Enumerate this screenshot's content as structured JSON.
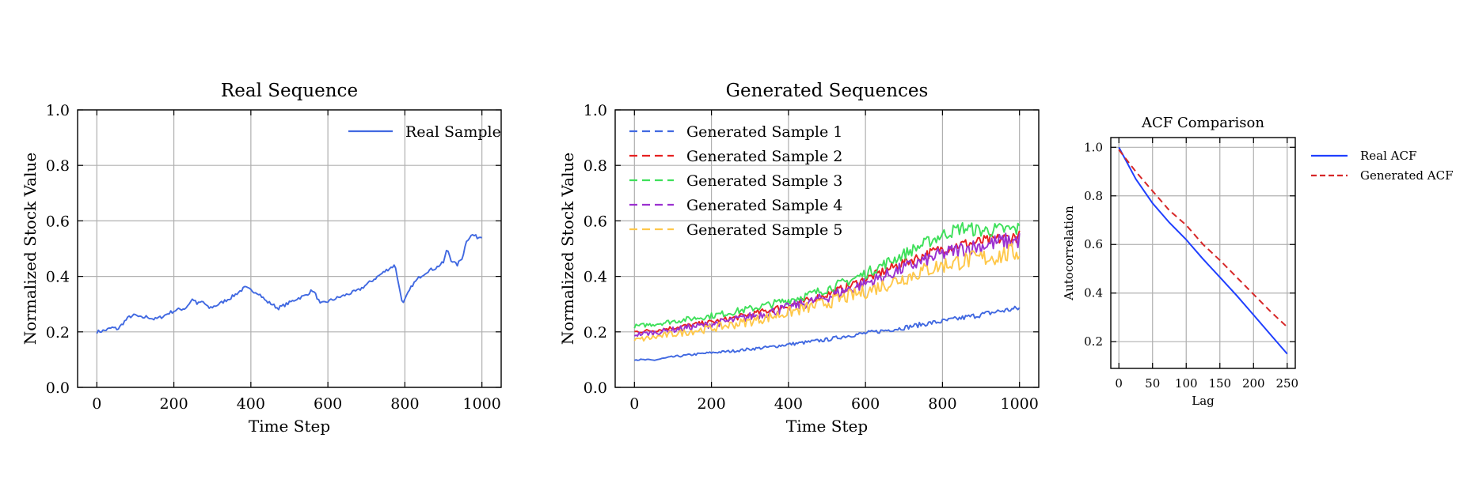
{
  "chart_data": [
    {
      "type": "line",
      "title": "Real Sequence",
      "xlabel": "Time Step",
      "ylabel": "Normalized Stock Value",
      "xlim": [
        -50,
        1050
      ],
      "ylim": [
        0.0,
        1.0
      ],
      "xticks": [
        "0",
        "200",
        "400",
        "600",
        "800",
        "1000"
      ],
      "yticks": [
        "0.0",
        "0.2",
        "0.4",
        "0.6",
        "0.8",
        "1.0"
      ],
      "grid": true,
      "legend": "top-right",
      "series": [
        {
          "name": "Real Sample",
          "color": "#4169e1",
          "style": "solid",
          "points": [
            [
              0,
              0.2
            ],
            [
              20,
              0.205
            ],
            [
              40,
              0.215
            ],
            [
              55,
              0.21
            ],
            [
              70,
              0.235
            ],
            [
              85,
              0.255
            ],
            [
              100,
              0.26
            ],
            [
              115,
              0.25
            ],
            [
              130,
              0.255
            ],
            [
              150,
              0.245
            ],
            [
              170,
              0.255
            ],
            [
              190,
              0.27
            ],
            [
              210,
              0.28
            ],
            [
              230,
              0.285
            ],
            [
              250,
              0.32
            ],
            [
              260,
              0.3
            ],
            [
              275,
              0.31
            ],
            [
              290,
              0.285
            ],
            [
              310,
              0.295
            ],
            [
              330,
              0.31
            ],
            [
              350,
              0.325
            ],
            [
              370,
              0.345
            ],
            [
              385,
              0.36
            ],
            [
              400,
              0.35
            ],
            [
              420,
              0.34
            ],
            [
              440,
              0.31
            ],
            [
              455,
              0.3
            ],
            [
              470,
              0.285
            ],
            [
              485,
              0.295
            ],
            [
              500,
              0.305
            ],
            [
              520,
              0.32
            ],
            [
              540,
              0.33
            ],
            [
              560,
              0.35
            ],
            [
              570,
              0.33
            ],
            [
              580,
              0.3
            ],
            [
              600,
              0.31
            ],
            [
              620,
              0.32
            ],
            [
              640,
              0.33
            ],
            [
              660,
              0.34
            ],
            [
              680,
              0.35
            ],
            [
              700,
              0.37
            ],
            [
              720,
              0.39
            ],
            [
              740,
              0.41
            ],
            [
              760,
              0.43
            ],
            [
              775,
              0.44
            ],
            [
              785,
              0.36
            ],
            [
              795,
              0.3
            ],
            [
              805,
              0.33
            ],
            [
              820,
              0.37
            ],
            [
              840,
              0.4
            ],
            [
              860,
              0.42
            ],
            [
              880,
              0.43
            ],
            [
              900,
              0.45
            ],
            [
              910,
              0.5
            ],
            [
              920,
              0.46
            ],
            [
              935,
              0.44
            ],
            [
              950,
              0.47
            ],
            [
              960,
              0.53
            ],
            [
              975,
              0.55
            ],
            [
              990,
              0.54
            ],
            [
              1000,
              0.545
            ]
          ]
        }
      ]
    },
    {
      "type": "line",
      "title": "Generated Sequences",
      "xlabel": "Time Step",
      "ylabel": "Normalized Stock Value",
      "xlim": [
        -50,
        1050
      ],
      "ylim": [
        0.0,
        1.0
      ],
      "xticks": [
        "0",
        "200",
        "400",
        "600",
        "800",
        "1000"
      ],
      "yticks": [
        "0.0",
        "0.2",
        "0.4",
        "0.6",
        "0.8",
        "1.0"
      ],
      "grid": true,
      "legend": "top-left",
      "series": [
        {
          "name": "Generated Sample 1",
          "color": "#4169e1",
          "style": "dashed",
          "points": [
            [
              0,
              0.1
            ],
            [
              50,
              0.098
            ],
            [
              100,
              0.11
            ],
            [
              150,
              0.118
            ],
            [
              200,
              0.125
            ],
            [
              250,
              0.13
            ],
            [
              300,
              0.138
            ],
            [
              350,
              0.145
            ],
            [
              400,
              0.155
            ],
            [
              450,
              0.163
            ],
            [
              500,
              0.172
            ],
            [
              550,
              0.185
            ],
            [
              600,
              0.195
            ],
            [
              650,
              0.205
            ],
            [
              700,
              0.215
            ],
            [
              750,
              0.228
            ],
            [
              800,
              0.238
            ],
            [
              850,
              0.25
            ],
            [
              900,
              0.262
            ],
            [
              950,
              0.275
            ],
            [
              1000,
              0.285
            ]
          ]
        },
        {
          "name": "Generated Sample 2",
          "color": "#e62020",
          "style": "dashed",
          "points": [
            [
              0,
              0.2
            ],
            [
              50,
              0.205
            ],
            [
              100,
              0.215
            ],
            [
              150,
              0.225
            ],
            [
              200,
              0.235
            ],
            [
              250,
              0.248
            ],
            [
              300,
              0.262
            ],
            [
              350,
              0.278
            ],
            [
              400,
              0.295
            ],
            [
              450,
              0.312
            ],
            [
              500,
              0.335
            ],
            [
              550,
              0.36
            ],
            [
              600,
              0.39
            ],
            [
              650,
              0.42
            ],
            [
              700,
              0.45
            ],
            [
              750,
              0.475
            ],
            [
              800,
              0.5
            ],
            [
              850,
              0.515
            ],
            [
              900,
              0.525
            ],
            [
              950,
              0.535
            ],
            [
              1000,
              0.545
            ]
          ]
        },
        {
          "name": "Generated Sample 3",
          "color": "#3ee05a",
          "style": "dashed",
          "points": [
            [
              0,
              0.22
            ],
            [
              50,
              0.228
            ],
            [
              100,
              0.238
            ],
            [
              150,
              0.248
            ],
            [
              200,
              0.258
            ],
            [
              250,
              0.27
            ],
            [
              300,
              0.283
            ],
            [
              350,
              0.298
            ],
            [
              400,
              0.315
            ],
            [
              450,
              0.332
            ],
            [
              500,
              0.355
            ],
            [
              550,
              0.38
            ],
            [
              600,
              0.41
            ],
            [
              650,
              0.445
            ],
            [
              700,
              0.48
            ],
            [
              750,
              0.515
            ],
            [
              800,
              0.55
            ],
            [
              850,
              0.575
            ],
            [
              900,
              0.565
            ],
            [
              950,
              0.568
            ],
            [
              1000,
              0.57
            ]
          ]
        },
        {
          "name": "Generated Sample 4",
          "color": "#9b30d0",
          "style": "dashed",
          "points": [
            [
              0,
              0.19
            ],
            [
              50,
              0.197
            ],
            [
              100,
              0.207
            ],
            [
              150,
              0.218
            ],
            [
              200,
              0.228
            ],
            [
              250,
              0.24
            ],
            [
              300,
              0.255
            ],
            [
              350,
              0.27
            ],
            [
              400,
              0.288
            ],
            [
              450,
              0.305
            ],
            [
              500,
              0.325
            ],
            [
              550,
              0.35
            ],
            [
              600,
              0.375
            ],
            [
              650,
              0.4
            ],
            [
              700,
              0.43
            ],
            [
              750,
              0.455
            ],
            [
              800,
              0.48
            ],
            [
              850,
              0.5
            ],
            [
              900,
              0.51
            ],
            [
              950,
              0.525
            ],
            [
              1000,
              0.53
            ]
          ]
        },
        {
          "name": "Generated Sample 5",
          "color": "#ffc84a",
          "style": "dashed",
          "points": [
            [
              0,
              0.17
            ],
            [
              50,
              0.18
            ],
            [
              100,
              0.192
            ],
            [
              150,
              0.203
            ],
            [
              200,
              0.213
            ],
            [
              250,
              0.225
            ],
            [
              300,
              0.238
            ],
            [
              350,
              0.253
            ],
            [
              400,
              0.27
            ],
            [
              450,
              0.287
            ],
            [
              500,
              0.305
            ],
            [
              550,
              0.325
            ],
            [
              600,
              0.345
            ],
            [
              650,
              0.37
            ],
            [
              700,
              0.395
            ],
            [
              750,
              0.42
            ],
            [
              800,
              0.44
            ],
            [
              850,
              0.455
            ],
            [
              900,
              0.465
            ],
            [
              950,
              0.475
            ],
            [
              1000,
              0.49
            ]
          ]
        }
      ]
    },
    {
      "type": "line",
      "title": "ACF Comparison",
      "xlabel": "Lag",
      "ylabel": "Autocorrelation",
      "xlim": [
        -12,
        262
      ],
      "ylim": [
        0.09,
        1.04
      ],
      "xticks": [
        "0",
        "50",
        "100",
        "150",
        "200",
        "250"
      ],
      "yticks": [
        "0.2",
        "0.4",
        "0.6",
        "0.8",
        "1.0"
      ],
      "grid": true,
      "legend": "top-right",
      "series": [
        {
          "name": "Real ACF",
          "color": "#1f3fff",
          "style": "solid",
          "points": [
            [
              0,
              1.0
            ],
            [
              25,
              0.87
            ],
            [
              50,
              0.77
            ],
            [
              75,
              0.69
            ],
            [
              100,
              0.62
            ],
            [
              125,
              0.54
            ],
            [
              150,
              0.465
            ],
            [
              175,
              0.39
            ],
            [
              200,
              0.31
            ],
            [
              225,
              0.23
            ],
            [
              250,
              0.15
            ]
          ]
        },
        {
          "name": "Generated ACF",
          "color": "#d62728",
          "style": "dashed",
          "points": [
            [
              0,
              0.99
            ],
            [
              25,
              0.9
            ],
            [
              50,
              0.82
            ],
            [
              75,
              0.74
            ],
            [
              100,
              0.68
            ],
            [
              125,
              0.6
            ],
            [
              150,
              0.535
            ],
            [
              175,
              0.465
            ],
            [
              200,
              0.395
            ],
            [
              225,
              0.325
            ],
            [
              250,
              0.26
            ]
          ]
        }
      ]
    }
  ]
}
